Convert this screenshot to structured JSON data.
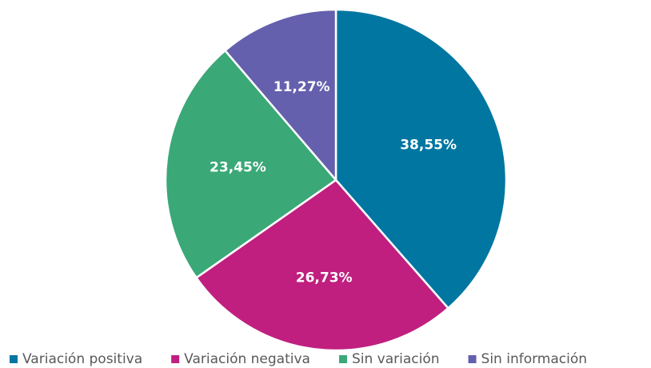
{
  "chart_data": {
    "type": "pie",
    "categories": [
      "Variación positiva",
      "Variación negativa",
      "Sin variación",
      "Sin información"
    ],
    "values": [
      38.55,
      26.73,
      23.45,
      11.27
    ],
    "value_labels": [
      "38,55%",
      "26,73%",
      "23,45%",
      "11,27%"
    ],
    "colors": [
      "#0176a1",
      "#c01f7f",
      "#3aa877",
      "#6460ad"
    ],
    "legend": "bottom"
  }
}
